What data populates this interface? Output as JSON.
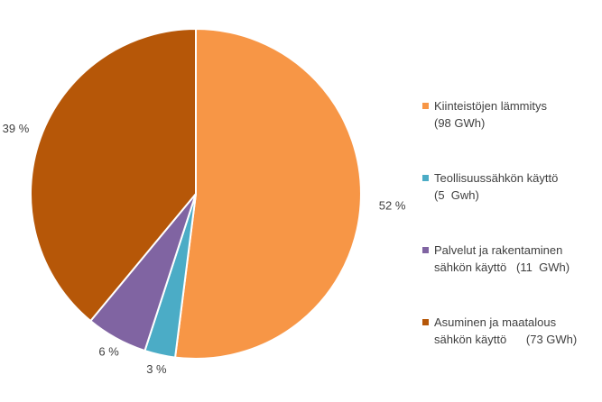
{
  "chart_data": {
    "type": "pie",
    "slices": [
      {
        "label_line1": "Kiinteistöjen lämmitys",
        "label_line2": "(98 GWh)",
        "percent_label": "52 %",
        "value": 52,
        "color": "#F79646"
      },
      {
        "label_line1": "Teollisuussähkön käyttö",
        "label_line2": "(5  Gwh)",
        "percent_label": "3 %",
        "value": 3,
        "color": "#4BACC6"
      },
      {
        "label_line1": "Palvelut ja rakentaminen",
        "label_line2": "sähkön käyttö   (11  GWh)",
        "percent_label": "6 %",
        "value": 6,
        "color": "#8064A2"
      },
      {
        "label_line1": "Asuminen ja maatalous",
        "label_line2": "sähkön käyttö      (73 GWh)",
        "percent_label": "39 %",
        "value": 39,
        "color": "#B65708"
      }
    ],
    "legend_position": "right"
  }
}
